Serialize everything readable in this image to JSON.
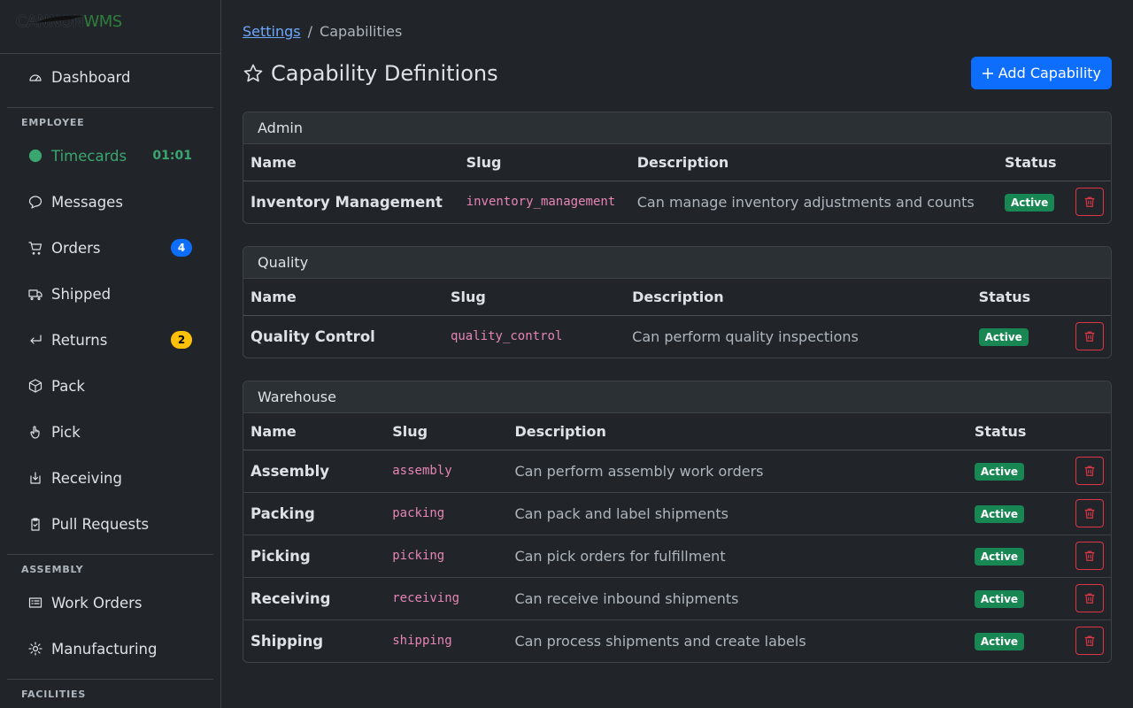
{
  "logo": {
    "brand": "CANNON",
    "suffix": "WMS"
  },
  "sidebar": {
    "top": [
      {
        "label": "Dashboard"
      }
    ],
    "sections": [
      {
        "title": "EMPLOYEE",
        "items": [
          {
            "label": "Timecards",
            "timer": "01:01"
          },
          {
            "label": "Messages"
          },
          {
            "label": "Orders",
            "badge": "4"
          },
          {
            "label": "Shipped"
          },
          {
            "label": "Returns",
            "badge": "2"
          },
          {
            "label": "Pack"
          },
          {
            "label": "Pick"
          },
          {
            "label": "Receiving"
          },
          {
            "label": "Pull Requests"
          }
        ]
      },
      {
        "title": "ASSEMBLY",
        "items": [
          {
            "label": "Work Orders"
          },
          {
            "label": "Manufacturing"
          }
        ]
      },
      {
        "title": "FACILITIES",
        "items": []
      }
    ]
  },
  "breadcrumb": {
    "parent": "Settings",
    "separator": "/",
    "current": "Capabilities"
  },
  "header": {
    "title": "Capability Definitions",
    "button": "Add Capability"
  },
  "groups": [
    {
      "title": "Admin",
      "columns": [
        "Name",
        "Slug",
        "Description",
        "Status"
      ],
      "rows": [
        {
          "name": "Inventory Management",
          "slug": "inventory_management",
          "description": "Can manage inventory adjustments and counts",
          "status": "Active"
        }
      ]
    },
    {
      "title": "Quality",
      "columns": [
        "Name",
        "Slug",
        "Description",
        "Status"
      ],
      "rows": [
        {
          "name": "Quality Control",
          "slug": "quality_control",
          "description": "Can perform quality inspections",
          "status": "Active"
        }
      ]
    },
    {
      "title": "Warehouse",
      "columns": [
        "Name",
        "Slug",
        "Description",
        "Status"
      ],
      "rows": [
        {
          "name": "Assembly",
          "slug": "assembly",
          "description": "Can perform assembly work orders",
          "status": "Active"
        },
        {
          "name": "Packing",
          "slug": "packing",
          "description": "Can pack and label shipments",
          "status": "Active"
        },
        {
          "name": "Picking",
          "slug": "picking",
          "description": "Can pick orders for fulfillment",
          "status": "Active"
        },
        {
          "name": "Receiving",
          "slug": "receiving",
          "description": "Can receive inbound shipments",
          "status": "Active"
        },
        {
          "name": "Shipping",
          "slug": "shipping",
          "description": "Can process shipments and create labels",
          "status": "Active"
        }
      ]
    }
  ]
}
